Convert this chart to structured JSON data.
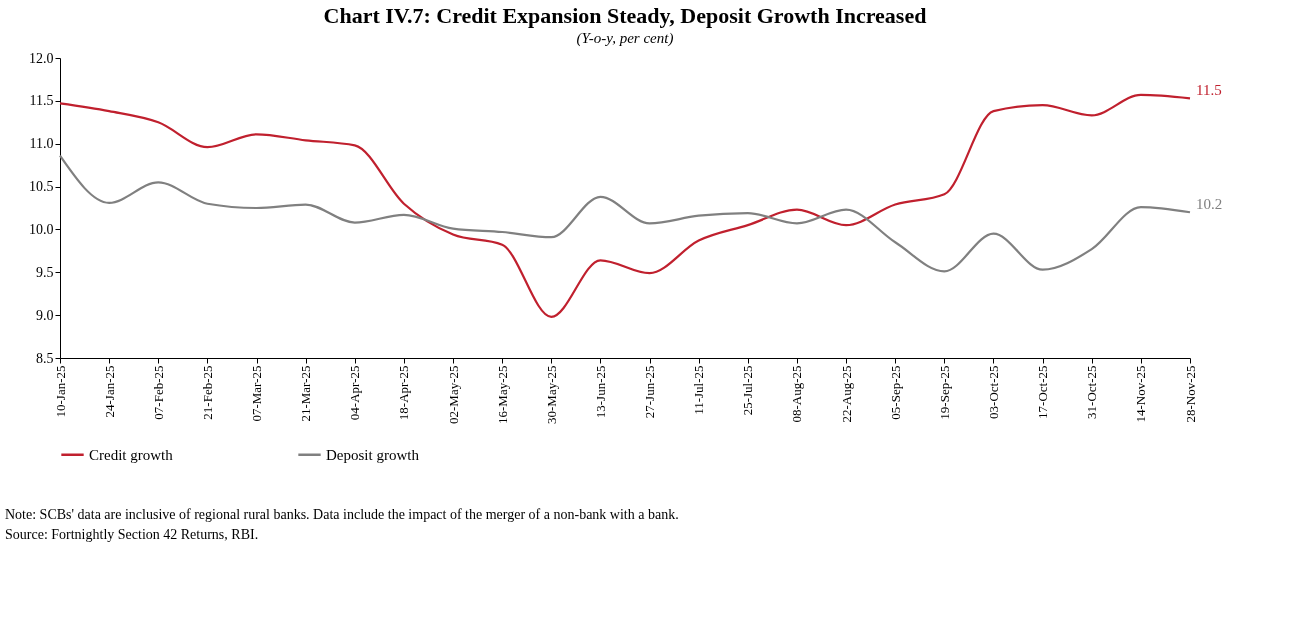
{
  "chart_data": {
    "type": "line",
    "title": "Chart IV.7: Credit Expansion Steady, Deposit Growth Increased",
    "subtitle": "(Y-o-y, per cent)",
    "categories": [
      "10-Jan-25",
      "24-Jan-25",
      "07-Feb-25",
      "21-Feb-25",
      "07-Mar-25",
      "21-Mar-25",
      "04-Apr-25",
      "18-Apr-25",
      "02-May-25",
      "16-May-25",
      "30-May-25",
      "13-Jun-25",
      "27-Jun-25",
      "11-Jul-25",
      "25-Jul-25",
      "08-Aug-25",
      "22-Aug-25",
      "05-Sep-25",
      "19-Sep-25",
      "03-Oct-25",
      "17-Oct-25",
      "31-Oct-25",
      "14-Nov-25",
      "28-Nov-25"
    ],
    "series": [
      {
        "name": "Credit growth",
        "color": "#c0202e",
        "values": [
          11.47,
          11.38,
          11.25,
          10.96,
          11.11,
          11.04,
          10.98,
          10.3,
          9.94,
          9.82,
          8.98,
          9.64,
          9.49,
          9.87,
          10.05,
          10.23,
          10.05,
          10.29,
          10.41,
          11.38,
          11.45,
          11.33,
          11.57,
          11.53
        ],
        "value_labels": [
          null,
          null,
          null,
          null,
          null,
          null,
          null,
          null,
          null,
          null,
          null,
          null,
          null,
          null,
          null,
          null,
          null,
          null,
          null,
          null,
          null,
          null,
          null,
          "11.5"
        ]
      },
      {
        "name": "Deposit growth",
        "color": "#808080",
        "values": [
          10.86,
          10.31,
          10.55,
          10.3,
          10.25,
          10.29,
          10.08,
          10.17,
          10.01,
          9.97,
          9.91,
          10.38,
          10.07,
          10.16,
          10.19,
          10.07,
          10.23,
          9.85,
          9.51,
          9.95,
          9.53,
          9.77,
          10.26,
          10.2
        ],
        "value_labels": [
          null,
          null,
          null,
          null,
          null,
          null,
          null,
          null,
          null,
          null,
          null,
          null,
          null,
          null,
          null,
          null,
          null,
          null,
          null,
          null,
          null,
          null,
          null,
          "10.2"
        ]
      }
    ],
    "ylim": [
      8.5,
      12.0
    ],
    "yticks": [
      8.5,
      {
        "value": 9,
        "label": "9.0"
      },
      9.5,
      {
        "value": 10,
        "label": "10.0"
      },
      10.5,
      {
        "value": 11,
        "label": "11.0"
      },
      11.5,
      {
        "value": 12,
        "label": "12.0"
      }
    ],
    "grid": false,
    "legend": "bottom",
    "marker": "none",
    "line_style": "solid",
    "annotations": [
      "Note: SCBs' data are inclusive of regional rural banks. Data include the impact of the merger of a non-bank with a bank.",
      "Source: Fortnightly Section 42 Returns, RBI."
    ]
  }
}
